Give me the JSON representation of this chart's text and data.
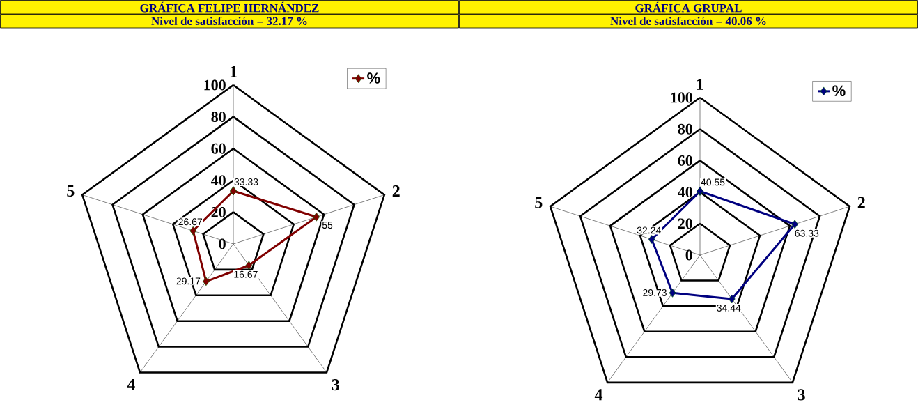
{
  "chart_data": [
    {
      "type": "radar",
      "title": "GRÁFICA FELIPE HERNÁNDEZ",
      "subtitle": "Nivel de satisfacción = 32.17 %",
      "categories": [
        "1",
        "2",
        "3",
        "4",
        "5"
      ],
      "series": [
        {
          "name": "%",
          "color": "#800000",
          "values": [
            33.33,
            55,
            16.67,
            29.17,
            26.67
          ]
        }
      ],
      "ylim": [
        0,
        100
      ],
      "yticks": [
        0,
        20,
        40,
        60,
        80,
        100
      ],
      "grid": true,
      "legend": "top right",
      "marker": "diamond",
      "data_labels": true
    },
    {
      "type": "radar",
      "title": "GRÁFICA GRUPAL",
      "subtitle": "Nivel de satisfacción = 40.06 %",
      "categories": [
        "1",
        "2",
        "3",
        "4",
        "5"
      ],
      "series": [
        {
          "name": "%",
          "color": "#000080",
          "values": [
            40.55,
            63.33,
            34.44,
            29.73,
            32.24
          ]
        }
      ],
      "ylim": [
        0,
        100
      ],
      "yticks": [
        0,
        20,
        40,
        60,
        80,
        100
      ],
      "grid": true,
      "legend": "top right",
      "marker": "diamond",
      "data_labels": true
    }
  ]
}
